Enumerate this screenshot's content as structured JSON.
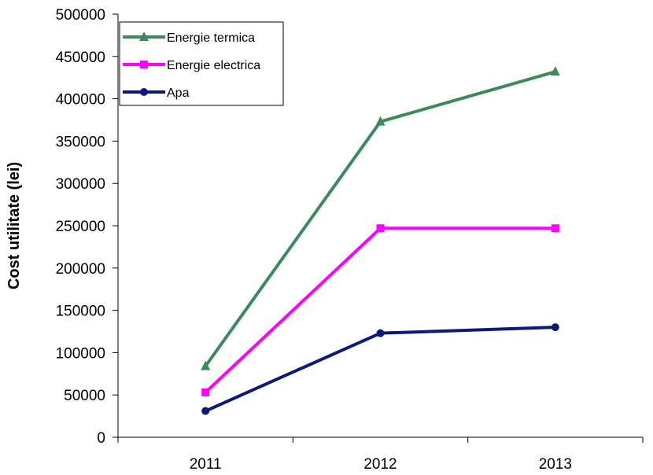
{
  "chart_data": {
    "type": "line",
    "title": "",
    "xlabel": "",
    "ylabel": "Cost utilitate (lei)",
    "categories": [
      "2011",
      "2012",
      "2013"
    ],
    "ylim": [
      0,
      500000
    ],
    "yticks": [
      0,
      50000,
      100000,
      150000,
      200000,
      250000,
      300000,
      350000,
      400000,
      450000,
      500000
    ],
    "ytick_labels": [
      "0",
      "50000",
      "100000",
      "150000",
      "200000",
      "250000",
      "300000",
      "350000",
      "400000",
      "450000",
      "500000"
    ],
    "grid": false,
    "legend_position": "top-left",
    "series": [
      {
        "name": "Energie termica",
        "values": [
          84000,
          373000,
          432000
        ],
        "color": "#3a8a5c",
        "marker": "triangle"
      },
      {
        "name": "Energie electrica",
        "values": [
          53000,
          247000,
          247000
        ],
        "color": "#ff00ff",
        "marker": "square"
      },
      {
        "name": "Apa",
        "values": [
          31000,
          123000,
          130000
        ],
        "color": "#0b1a78",
        "marker": "circle"
      }
    ]
  }
}
